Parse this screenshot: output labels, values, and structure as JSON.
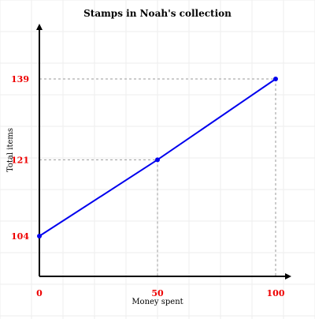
{
  "chart_data": {
    "type": "line",
    "title": "Stamps in Noah's collection",
    "xlabel": "Money spent",
    "ylabel": "Total items",
    "x": [
      0,
      50,
      100
    ],
    "series": [
      {
        "values": [
          104,
          121,
          139
        ]
      }
    ],
    "x_ticks": [
      "0",
      "50",
      "100"
    ],
    "y_ticks": [
      "104",
      "121",
      "139"
    ],
    "xlim": [
      0,
      105
    ],
    "ylim": [
      95,
      148
    ],
    "grid": true,
    "guide_lines": true,
    "colors": {
      "line": "#0000ee",
      "tick_labels": "#ee0000",
      "guides": "#999999",
      "grid": "#eeeeee",
      "axes": "#000000"
    }
  }
}
